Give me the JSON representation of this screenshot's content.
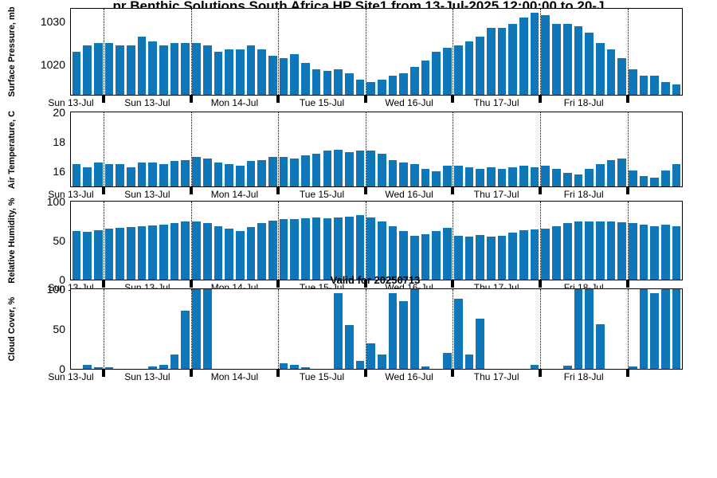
{
  "title": "pr Benthic Solutions South Africa HP Site1 from 13-Jul-2025 12:00:00 to 20-J",
  "annotation": "Valid for 20250713",
  "colors": {
    "bar": "#0f76b8",
    "axis": "#000000",
    "background": "#ffffff"
  },
  "x_axis": {
    "tick_labels": [
      "Sun 13-Jul",
      "Sun 13-Jul",
      "Mon 14-Jul",
      "Tue 15-Jul",
      "Wed 16-Jul",
      "Thu 17-Jul",
      "Fri 18-Jul"
    ],
    "day_boundaries": [
      3,
      11,
      19,
      27,
      35,
      43,
      51
    ],
    "label_centers": [
      0,
      7,
      15,
      23,
      31,
      39,
      47
    ],
    "n_bars": 56
  },
  "chart_data": [
    {
      "type": "bar",
      "ylabel": "Surface Pressure, mb",
      "ylim": [
        1013,
        1033
      ],
      "yticks": [
        1020,
        1030
      ],
      "grid": "vertical-dotted",
      "values": [
        1023,
        1024.5,
        1025,
        1025,
        1024.5,
        1024.5,
        1026.5,
        1025.5,
        1024.5,
        1025,
        1025,
        1025,
        1024.5,
        1023,
        1023.5,
        1023.5,
        1024.5,
        1023.5,
        1022,
        1021.5,
        1022.5,
        1020.5,
        1019,
        1018.5,
        1019,
        1018,
        1016.5,
        1016,
        1016.5,
        1017.5,
        1018,
        1019.5,
        1021,
        1023,
        1024,
        1024.5,
        1025.5,
        1026.5,
        1028.5,
        1028.5,
        1029.5,
        1031,
        1032,
        1031.5,
        1029.5,
        1029.5,
        1029,
        1027.5,
        1025,
        1023.5,
        1021.5,
        1019,
        1017.5,
        1017.5,
        1016,
        1015.5
      ]
    },
    {
      "type": "bar",
      "ylabel": "Air Temperature, C",
      "ylim": [
        15,
        20
      ],
      "yticks": [
        16,
        18,
        20
      ],
      "grid": "vertical-dotted",
      "values": [
        16.5,
        16.3,
        16.6,
        16.5,
        16.5,
        16.3,
        16.6,
        16.6,
        16.5,
        16.7,
        16.8,
        17.0,
        16.9,
        16.6,
        16.5,
        16.4,
        16.7,
        16.8,
        17.0,
        17.0,
        16.9,
        17.1,
        17.2,
        17.4,
        17.5,
        17.3,
        17.4,
        17.4,
        17.2,
        16.8,
        16.6,
        16.5,
        16.2,
        16.0,
        16.4,
        16.4,
        16.3,
        16.2,
        16.3,
        16.2,
        16.3,
        16.4,
        16.3,
        16.4,
        16.2,
        15.9,
        15.8,
        16.2,
        16.5,
        16.8,
        16.9,
        16.1,
        15.7,
        15.6,
        16.1,
        16.5
      ]
    },
    {
      "type": "bar",
      "ylabel": "Relative Humidity, %",
      "ylim": [
        0,
        100
      ],
      "yticks": [
        0,
        50,
        100
      ],
      "grid": "vertical-dotted",
      "values": [
        62,
        61,
        63,
        65,
        66,
        67,
        68,
        69,
        70,
        72,
        74,
        75,
        72,
        68,
        65,
        62,
        67,
        72,
        76,
        78,
        78,
        79,
        80,
        79,
        80,
        81,
        83,
        80,
        75,
        68,
        62,
        56,
        58,
        62,
        66,
        56,
        55,
        57,
        55,
        56,
        60,
        63,
        64,
        65,
        68,
        72,
        74,
        75,
        75,
        74,
        73,
        72,
        70,
        68,
        70,
        68
      ]
    },
    {
      "type": "bar",
      "ylabel": "Cloud Cover, %",
      "ylim": [
        0,
        100
      ],
      "yticks": [
        0,
        50,
        100
      ],
      "grid": "vertical-dotted",
      "values": [
        0,
        5,
        2,
        2,
        0,
        0,
        0,
        3,
        5,
        18,
        73,
        100,
        100,
        0,
        0,
        0,
        0,
        0,
        0,
        7,
        5,
        2,
        0,
        0,
        95,
        55,
        10,
        32,
        18,
        95,
        85,
        100,
        3,
        0,
        20,
        88,
        18,
        63,
        0,
        0,
        0,
        0,
        5,
        0,
        0,
        4,
        100,
        100,
        56,
        0,
        0,
        3,
        100,
        95,
        100,
        100
      ]
    }
  ]
}
